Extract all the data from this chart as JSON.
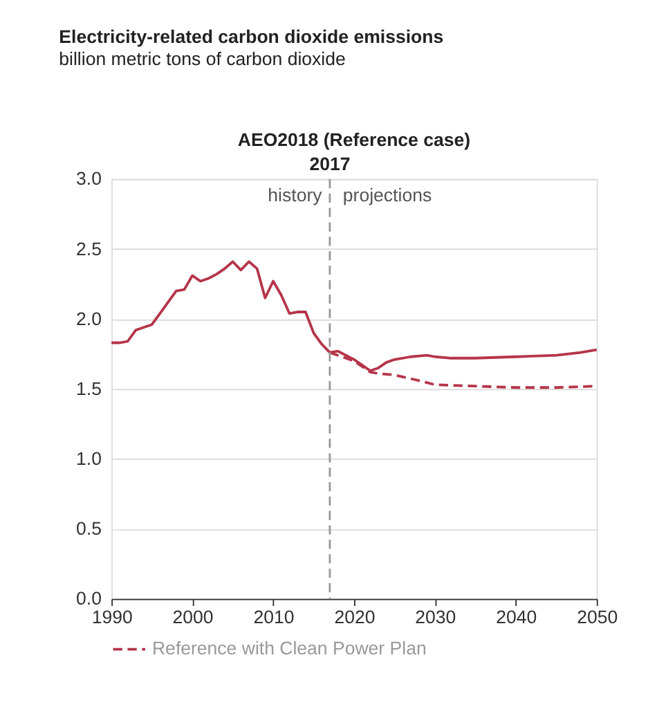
{
  "chart_data": {
    "type": "line",
    "title": "Electricity-related carbon dioxide emissions",
    "subtitle": "billion metric tons of carbon dioxide",
    "xlim": [
      1990,
      2050
    ],
    "xticks": [
      1990,
      2000,
      2010,
      2020,
      2030,
      2040,
      2050
    ],
    "ylim": [
      0,
      3.0
    ],
    "yticks": [
      {
        "value": 0,
        "label": "0.0"
      },
      {
        "value": 0.5,
        "label": "0.5"
      },
      {
        "value": 1,
        "label": "1.0"
      },
      {
        "value": 1.5,
        "label": "1.5"
      },
      {
        "value": 2,
        "label": "2.0"
      },
      {
        "value": 2.5,
        "label": "2.5"
      },
      {
        "value": 3,
        "label": "3.0"
      }
    ],
    "grid": "y",
    "legend": "bottom",
    "series": [
      {
        "color": "#b5354a",
        "line_style": "solid",
        "x": [
          1990,
          1991,
          1992,
          1993,
          1994,
          1995,
          1996,
          1997,
          1998,
          1999,
          2000,
          2001,
          2002,
          2003,
          2004,
          2005,
          2006,
          2007,
          2008,
          2009,
          2010,
          2011,
          2012,
          2013,
          2014,
          2015,
          2016,
          2017,
          2018,
          2019,
          2020,
          2021,
          2022,
          2023,
          2024,
          2025,
          2027,
          2029,
          2030,
          2032,
          2035,
          2040,
          2045,
          2048,
          2050
        ],
        "values": [
          1.83,
          1.83,
          1.84,
          1.92,
          1.94,
          1.96,
          2.04,
          2.12,
          2.2,
          2.21,
          2.31,
          2.27,
          2.29,
          2.32,
          2.36,
          2.41,
          2.35,
          2.41,
          2.36,
          2.15,
          2.27,
          2.17,
          2.04,
          2.05,
          2.05,
          1.9,
          1.82,
          1.76,
          1.77,
          1.74,
          1.71,
          1.67,
          1.63,
          1.65,
          1.69,
          1.71,
          1.73,
          1.74,
          1.73,
          1.72,
          1.72,
          1.73,
          1.74,
          1.76,
          1.78
        ]
      },
      {
        "name": "Reference with Clean Power Plan",
        "color": "#b5354a",
        "line_style": "dashed",
        "x": [
          2017,
          2020,
          2022,
          2023,
          2025,
          2028,
          2030,
          2035,
          2040,
          2045,
          2050
        ],
        "values": [
          1.76,
          1.7,
          1.62,
          1.61,
          1.6,
          1.56,
          1.53,
          1.52,
          1.51,
          1.51,
          1.52
        ]
      }
    ],
    "ref_lines": [
      {
        "axis": "x",
        "value": 2017,
        "label": "2017",
        "color": "#999999",
        "line_style": "dashed"
      }
    ],
    "annotations": [
      "AEO2018 (Reference case)",
      "history",
      "projections"
    ]
  }
}
